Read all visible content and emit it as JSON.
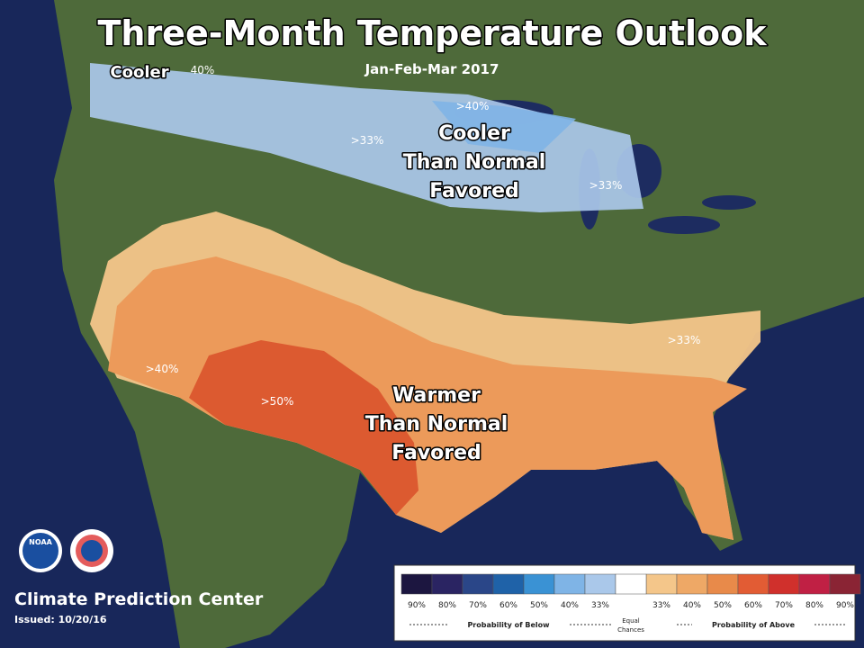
{
  "header": {
    "title": "Three-Month Temperature Outlook",
    "subtitle": "Jan-Feb-Mar 2017"
  },
  "map_labels": [
    {
      "lines": [
        "Cooler"
      ]
    },
    {
      "lines": [
        "40%"
      ]
    },
    {
      "lines": [
        ">40%"
      ]
    },
    {
      "lines": [
        ">33%"
      ]
    },
    {
      "lines": [
        "Cooler",
        "Than Normal",
        "Favored"
      ]
    },
    {
      "lines": [
        ">33%"
      ]
    },
    {
      "lines": [
        ">40%"
      ]
    },
    {
      "lines": [
        ">50%"
      ]
    },
    {
      "lines": [
        "Warmer",
        "Than Normal",
        "Favored"
      ]
    },
    {
      "lines": [
        ">33%"
      ]
    }
  ],
  "logos": [
    "NOAA"
  ],
  "footer": {
    "org": "Climate Prediction Center",
    "issued": "Issued: 10/20/16"
  },
  "legend": {
    "items": [
      {
        "label": "90%",
        "color": "#1c1640"
      },
      {
        "label": "80%",
        "color": "#2a2462"
      },
      {
        "label": "70%",
        "color": "#2a4688"
      },
      {
        "label": "60%",
        "color": "#1f62a8"
      },
      {
        "label": "50%",
        "color": "#3a92d4"
      },
      {
        "label": "40%",
        "color": "#7fb4e6"
      },
      {
        "label": "33%",
        "color": "#aac8ea"
      },
      {
        "label": "33%",
        "color": "#f4c68a"
      },
      {
        "label": "40%",
        "color": "#eea866"
      },
      {
        "label": "50%",
        "color": "#e88a4a"
      },
      {
        "label": "60%",
        "color": "#e25c34"
      },
      {
        "label": "70%",
        "color": "#d0302c"
      },
      {
        "label": "80%",
        "color": "#c02044"
      },
      {
        "label": "90%",
        "color": "#8a2434"
      }
    ],
    "below": "Probability of Below",
    "equal": [
      "Equal",
      "Chances"
    ],
    "above": "Probability of Above"
  }
}
